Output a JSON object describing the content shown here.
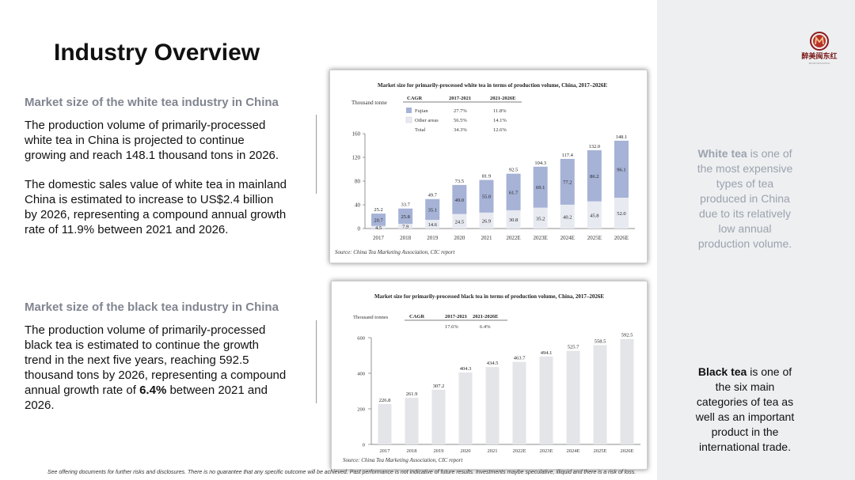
{
  "page": {
    "title": "Industry Overview"
  },
  "brand": {
    "logo_text": "醉美闽东红",
    "logo_sub": "MINDONGHONG",
    "accent": "#8b1a1a"
  },
  "white_section": {
    "heading": "Market size of the white tea industry in China",
    "paragraph1_lines": [
      "The production volume of primarily-processed",
      "white tea in China is projected to continue",
      "growing and reach 148.1 thousand tons in 2026."
    ],
    "paragraph2_lines": [
      "The domestic sales value of white tea in mainland",
      "China is estimated to increase to US$2.4 billion",
      "by 2026, representing a compound annual growth",
      "rate of 11.9% between 2021 and 2026."
    ]
  },
  "black_section": {
    "heading": "Market size of the black tea industry in China",
    "lines": [
      "The production volume of primarily-processed",
      "black tea is estimated to continue the growth",
      "trend in the next five years, reaching 592.5",
      "thousand tons by 2026, representing a compound"
    ],
    "line5_pre": "annual growth rate of ",
    "line5_bold": "6.4%",
    "line5_post": " between 2021 and",
    "line6": "2026."
  },
  "side_notes": {
    "white": {
      "bold": "White tea",
      "lines": [
        " is one of",
        "the most expensive",
        "types of tea",
        "produced in China",
        "due to its relatively",
        "low annual",
        "production volume."
      ]
    },
    "black": {
      "bold": "Black tea",
      "lines": [
        " is one of",
        "the six main",
        "categories of tea as",
        "well as an important",
        "product in the",
        "international trade."
      ]
    }
  },
  "footer": {
    "text": "See offering documents for further risks and disclosures. There is no guarantee that any specific outcome will be achieved. Past performance is not indicative of future results. Investments maybe speculative, illiquid and there is a risk of loss."
  },
  "colors": {
    "fujian": "#a6b2d6",
    "other": "#e8eaf2",
    "black_bar": "#e4e5e9",
    "sidebar": "#eeeff1"
  },
  "chart_data": [
    {
      "type": "bar",
      "stacked": true,
      "title": "Market size for primarily-processed white tea in terms of production volume, China, 2017–2026E",
      "ylabel": "Thousand tonne",
      "ylim": [
        0,
        160
      ],
      "yticks": [
        0,
        40,
        80,
        120,
        160
      ],
      "categories": [
        "2017",
        "2018",
        "2019",
        "2020",
        "2021",
        "2022E",
        "2023E",
        "2024E",
        "2025E",
        "2026E"
      ],
      "series": [
        {
          "name": "Other areas",
          "values": [
            4.5,
            7.9,
            14.6,
            24.5,
            26.9,
            30.8,
            35.2,
            40.2,
            45.8,
            52.0
          ],
          "labels": [
            "4.5",
            "7.9",
            "14.6",
            "24.5",
            "26.9",
            "30.8",
            "35.2",
            "40.2",
            "45.8",
            "52.0"
          ]
        },
        {
          "name": "Fujian",
          "values": [
            20.7,
            25.8,
            35.1,
            49.0,
            55.0,
            61.7,
            69.1,
            77.2,
            86.2,
            96.1
          ],
          "labels": [
            "20.7",
            "25.8",
            "35.1",
            "49.0",
            "55.0",
            "61.7",
            "69.1",
            "77.2",
            "86.2",
            "96.1"
          ]
        }
      ],
      "totals": [
        25.2,
        33.7,
        49.7,
        73.5,
        81.9,
        92.5,
        104.3,
        117.4,
        132.0,
        148.1
      ],
      "total_labels": [
        "25.2",
        "33.7",
        "49.7",
        "73.5",
        "81.9",
        "92.5",
        "104.3",
        "117.4",
        "132.0",
        "148.1"
      ],
      "cagr_table": {
        "headers": [
          "CAGR",
          "2017-2021",
          "2021-2026E"
        ],
        "rows": [
          [
            "Fujian",
            "27.7%",
            "11.8%"
          ],
          [
            "Other areas",
            "56.5%",
            "14.1%"
          ],
          [
            "Total",
            "34.3%",
            "12.6%"
          ]
        ]
      },
      "source": "Source: China Tea Marketing Association, CIC report"
    },
    {
      "type": "bar",
      "title": "Market size for primarily-processed black tea in terms of production volume, China, 2017–2026E",
      "ylabel": "Thousand tonnes",
      "ylim": [
        0,
        600
      ],
      "yticks": [
        0,
        200,
        400,
        600
      ],
      "categories": [
        "2017",
        "2018",
        "2019",
        "2020",
        "2021",
        "2022E",
        "2023E",
        "2024E",
        "2025E",
        "2026E"
      ],
      "values": [
        226.8,
        261.9,
        307.2,
        404.3,
        434.5,
        463.7,
        494.1,
        525.7,
        558.5,
        592.5
      ],
      "labels": [
        "226.8",
        "261.9",
        "307.2",
        "404.3",
        "434.5",
        "463.7",
        "494.1",
        "525.7",
        "558.5",
        "592.5"
      ],
      "cagr_table": {
        "headers": [
          "CAGR",
          "2017-2021",
          "2021-2026E"
        ],
        "values": [
          "17.6%",
          "6.4%"
        ]
      },
      "source": "Source: China Tea Marketing Association, CIC report"
    }
  ]
}
